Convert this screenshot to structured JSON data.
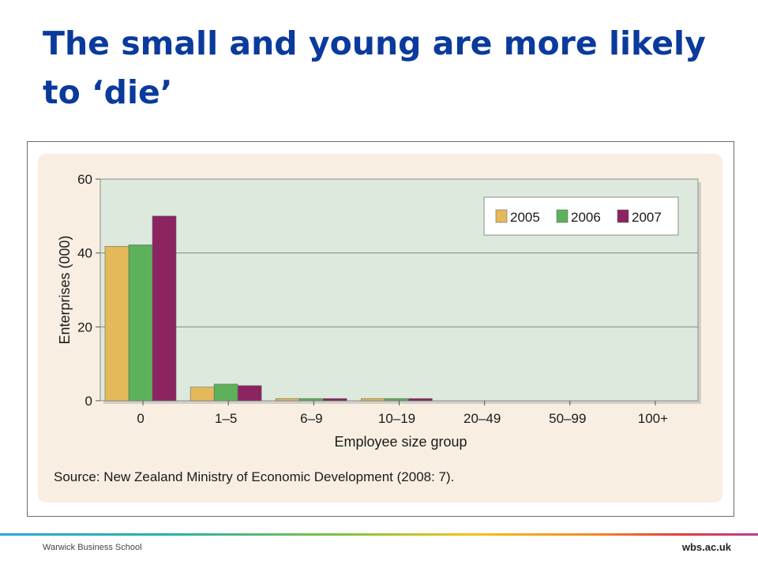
{
  "slide": {
    "title_line1": "The small and young are more likely",
    "title_line2": "to ‘die’",
    "title_color": "#0a3a9c"
  },
  "chart_data": {
    "type": "bar",
    "title": "",
    "xlabel": "Employee size group",
    "ylabel": "Enterprises (000)",
    "categories": [
      "0",
      "1–5",
      "6–9",
      "10–19",
      "20–49",
      "50–99",
      "100+"
    ],
    "series": [
      {
        "name": "2005",
        "color": "#e4b95a",
        "values": [
          41.8,
          3.7,
          0.6,
          0.6,
          0,
          0,
          0
        ]
      },
      {
        "name": "2006",
        "color": "#5cb15a",
        "values": [
          42.2,
          4.5,
          0.6,
          0.6,
          0,
          0,
          0
        ]
      },
      {
        "name": "2007",
        "color": "#8b2460",
        "values": [
          50.0,
          4.1,
          0.6,
          0.6,
          0,
          0,
          0
        ]
      }
    ],
    "ylim": [
      0,
      60
    ],
    "yticks": [
      0,
      20,
      40,
      60
    ],
    "grid": true,
    "legend_position": "top-right",
    "plot_background": "#dde9dd",
    "source_note": "Source: New Zealand Ministry of Economic Development (2008: 7)."
  },
  "footer": {
    "left_text": "Warwick Business School",
    "right_text": "wbs.ac.uk"
  }
}
